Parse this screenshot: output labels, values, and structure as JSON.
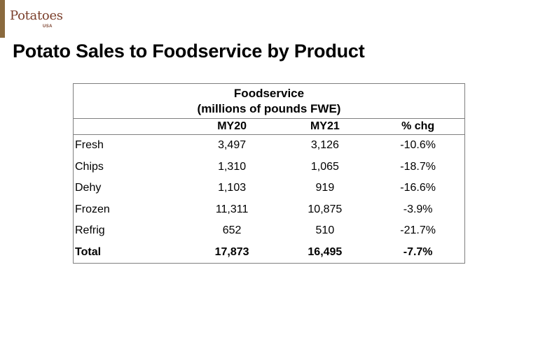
{
  "brand": {
    "name": "Potatoes",
    "sub": "USA",
    "colors": {
      "brand": "#7a3e2a",
      "bar": "#8a6a3e",
      "leaf": "#6a9a3a",
      "potato": "#d9b46a"
    }
  },
  "slide": {
    "title": "Potato Sales to Foodservice by Product"
  },
  "table": {
    "heading_line1": "Foodservice",
    "heading_line2": "(millions of pounds FWE)",
    "columns": [
      "",
      "MY20",
      "MY21",
      "% chg"
    ],
    "rows": [
      {
        "label": "Fresh",
        "my20": "3,497",
        "my21": "3,126",
        "chg": "-10.6%"
      },
      {
        "label": "Chips",
        "my20": "1,310",
        "my21": "1,065",
        "chg": "-18.7%"
      },
      {
        "label": "Dehy",
        "my20": "1,103",
        "my21": "919",
        "chg": "-16.6%"
      },
      {
        "label": "Frozen",
        "my20": "11,311",
        "my21": "10,875",
        "chg": "-3.9%"
      },
      {
        "label": "Refrig",
        "my20": "652",
        "my21": "510",
        "chg": "-21.7%"
      },
      {
        "label": "Total",
        "my20": "17,873",
        "my21": "16,495",
        "chg": "-7.7%"
      }
    ]
  }
}
